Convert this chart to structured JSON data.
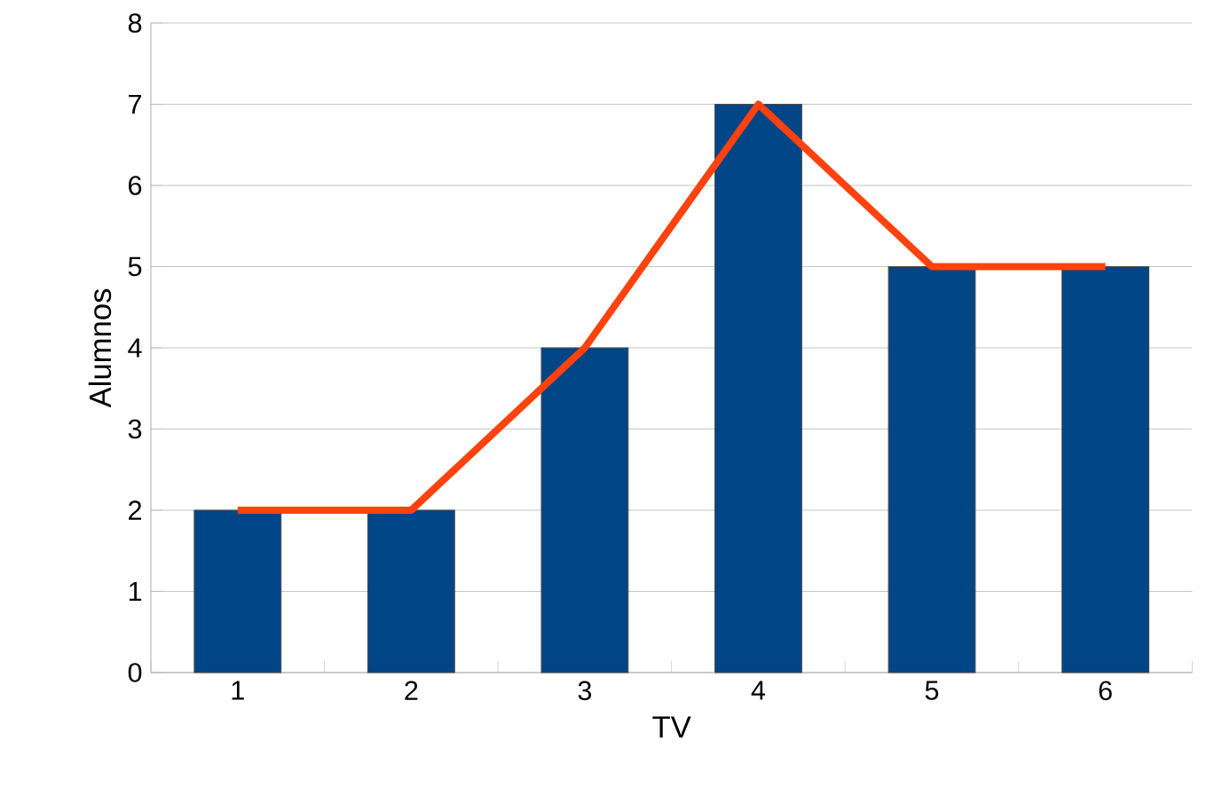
{
  "chart_data": {
    "type": "bar",
    "xlabel": "TV",
    "ylabel": "Alumnos",
    "categories": [
      "1",
      "2",
      "3",
      "4",
      "5",
      "6"
    ],
    "series": [
      {
        "color": "#004586",
        "values": [
          2,
          2,
          4,
          7,
          5,
          5
        ]
      },
      {
        "type": "line",
        "color": "#ff420e",
        "values": [
          2,
          2,
          4,
          7,
          5,
          5
        ]
      }
    ],
    "ylim": [
      0,
      8
    ],
    "yticks": [
      0,
      1,
      2,
      3,
      4,
      5,
      6,
      7,
      8
    ],
    "grid": "y",
    "marker": "none",
    "line_style": "solid"
  }
}
